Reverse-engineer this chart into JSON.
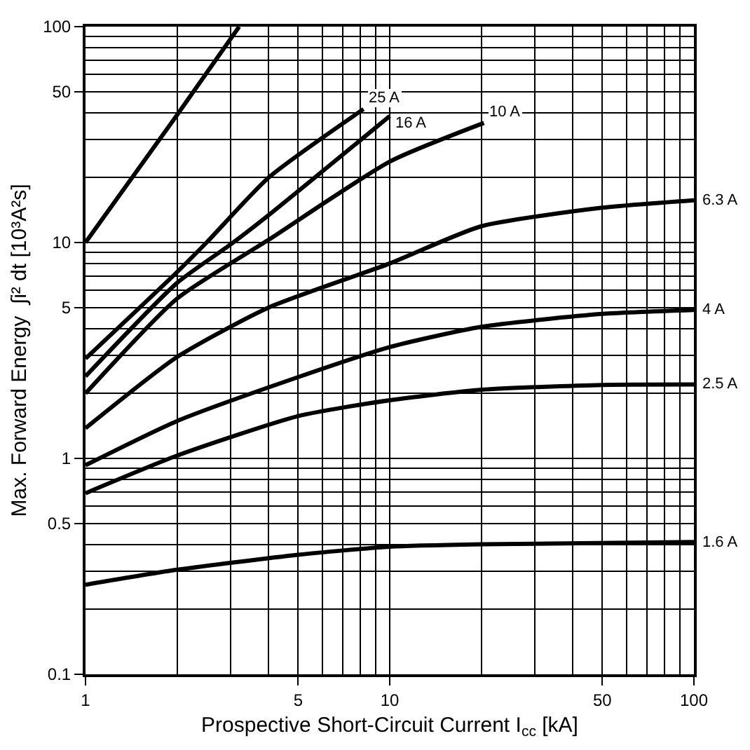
{
  "chart_data": {
    "type": "line",
    "xlabel": "Prospective Short-Circuit Current I$_{cc}$ [kA]",
    "ylabel": "Max. Forward Energy  ∫i² dt [10³A²s]",
    "log": "xy",
    "grid": true,
    "legend": false,
    "marker": "none",
    "line_style": "solid",
    "xlim": [
      1,
      100
    ],
    "ylim": [
      0.1,
      100
    ],
    "xticks": [
      1,
      5,
      10,
      50,
      100
    ],
    "yticks": [
      0.1,
      0.5,
      1,
      5,
      10,
      50,
      100
    ],
    "series": [
      {
        "color": "#000000",
        "x": [
          1,
          2,
          3.2
        ],
        "values": [
          10,
          39,
          100
        ]
      },
      {
        "name": "25 A",
        "color": "#000000",
        "x": [
          1,
          2,
          2.5,
          4,
          8.2
        ],
        "values": [
          2.9,
          7.3,
          10,
          20,
          41.5
        ]
      },
      {
        "name": "16 A",
        "color": "#000000",
        "x": [
          1,
          2,
          3,
          4,
          10
        ],
        "values": [
          2.4,
          6.5,
          9.8,
          13.4,
          38.5
        ]
      },
      {
        "name": "10 A",
        "color": "#000000",
        "x": [
          1,
          2,
          4,
          10,
          20.4
        ],
        "values": [
          2.0,
          5.5,
          10.3,
          23.7,
          35.8
        ]
      },
      {
        "name": "6.3 A",
        "color": "#000000",
        "x": [
          1,
          2,
          4,
          10,
          20,
          50,
          100
        ],
        "values": [
          1.38,
          2.95,
          5,
          8,
          11.9,
          14.5,
          15.7
        ]
      },
      {
        "name": "4 A",
        "color": "#000000",
        "x": [
          1,
          2,
          5,
          10,
          20,
          50,
          100
        ],
        "values": [
          0.93,
          1.49,
          2.38,
          3.28,
          4.07,
          4.67,
          4.87
        ]
      },
      {
        "name": "2.5 A",
        "color": "#000000",
        "x": [
          1,
          2,
          5,
          10,
          20,
          50,
          100
        ],
        "values": [
          0.69,
          1.03,
          1.57,
          1.86,
          2.08,
          2.19,
          2.2
        ]
      },
      {
        "name": "1.6 A",
        "color": "#000000",
        "x": [
          1,
          2,
          5,
          10,
          20,
          100
        ],
        "values": [
          0.26,
          0.305,
          0.358,
          0.39,
          0.4,
          0.41
        ]
      }
    ]
  }
}
